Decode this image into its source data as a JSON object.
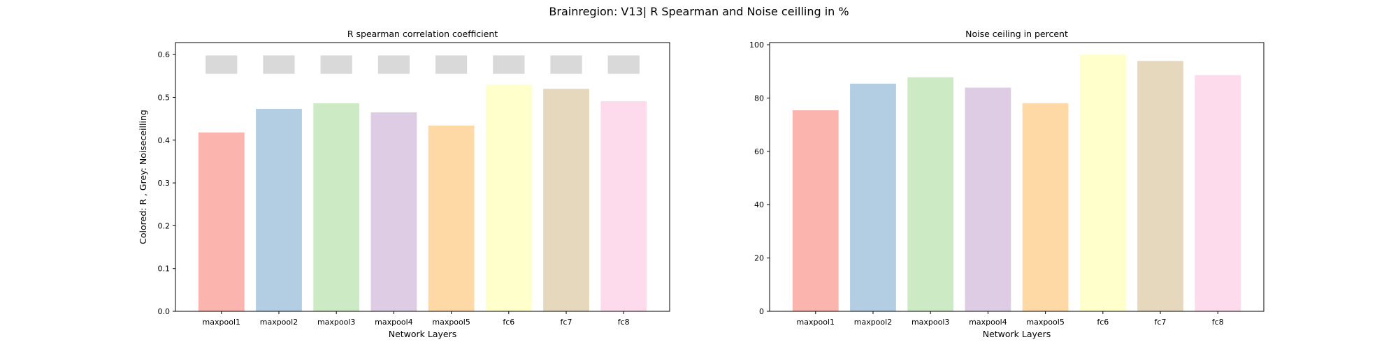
{
  "figure": {
    "title": "Brainregion: V13| R Spearman and Noise ceilling in %"
  },
  "chart_data": [
    {
      "type": "bar",
      "title": "R spearman correlation coefficient",
      "xlabel": "Network Layers",
      "ylabel": "Colored: R , Grey: Noiseceilling",
      "categories": [
        "maxpool1",
        "maxpool2",
        "maxpool3",
        "maxpool4",
        "maxpool5",
        "fc6",
        "fc7",
        "fc8"
      ],
      "series": [
        {
          "name": "R",
          "values": [
            0.418,
            0.473,
            0.486,
            0.465,
            0.434,
            0.53,
            0.52,
            0.491
          ]
        },
        {
          "name": "Noiseceilling",
          "band": [
            0.555,
            0.598
          ]
        }
      ],
      "colors": [
        "#fbb4ae",
        "#b3cde3",
        "#ccebc5",
        "#decbe4",
        "#fed9a6",
        "#ffffcc",
        "#e5d8bd",
        "#fddaec"
      ],
      "noise_color": "#d9d9d9",
      "ylim": [
        0,
        0.628
      ],
      "yticks": [
        "0.0",
        "0.1",
        "0.2",
        "0.3",
        "0.4",
        "0.5",
        "0.6"
      ],
      "grid": false
    },
    {
      "type": "bar",
      "title": "Noise ceiling in percent",
      "xlabel": "Network Layers",
      "ylabel": "",
      "categories": [
        "maxpool1",
        "maxpool2",
        "maxpool3",
        "maxpool4",
        "maxpool5",
        "fc6",
        "fc7",
        "fc8"
      ],
      "series": [
        {
          "name": "",
          "values": [
            75.4,
            85.4,
            87.8,
            83.9,
            78.0,
            96.3,
            93.9,
            88.6
          ]
        }
      ],
      "colors": [
        "#fbb4ae",
        "#b3cde3",
        "#ccebc5",
        "#decbe4",
        "#fed9a6",
        "#ffffcc",
        "#e5d8bd",
        "#fddaec"
      ],
      "ylim": [
        0,
        100.8
      ],
      "yticks": [
        "0",
        "20",
        "40",
        "60",
        "80",
        "100"
      ],
      "grid": false
    }
  ]
}
